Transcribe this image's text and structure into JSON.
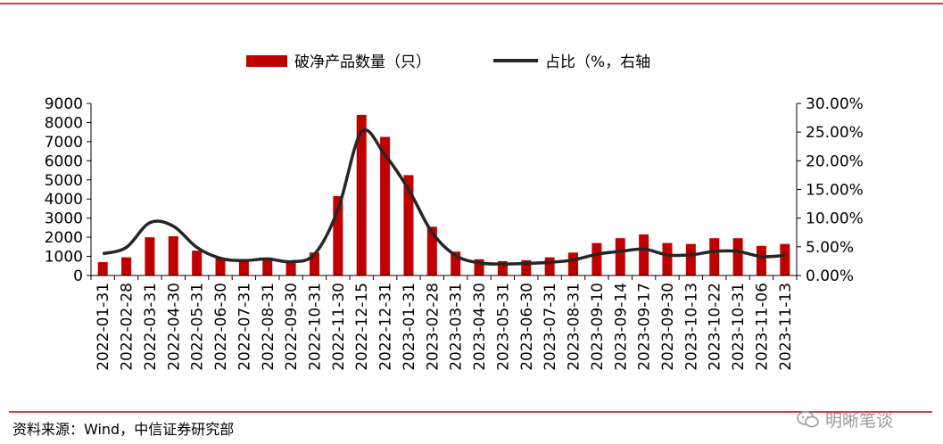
{
  "chart_data": {
    "type": "bar+line",
    "title": "",
    "xlabel": "",
    "ylabel": "",
    "categories": [
      "2022-01-31",
      "2022-02-28",
      "2022-03-31",
      "2022-04-30",
      "2022-05-31",
      "2022-06-30",
      "2022-07-31",
      "2022-08-31",
      "2022-09-30",
      "2022-10-31",
      "2022-11-30",
      "2022-12-15",
      "2022-12-31",
      "2023-01-31",
      "2023-02-28",
      "2023-03-31",
      "2023-04-30",
      "2023-05-31",
      "2023-06-30",
      "2023-07-31",
      "2023-08-31",
      "2023-09-10",
      "2023-09-14",
      "2023-09-17",
      "2023-09-30",
      "2023-10-13",
      "2023-10-22",
      "2023-10-31",
      "2023-11-06",
      "2023-11-13"
    ],
    "series": [
      {
        "name": "破净产品数量（只）",
        "type": "bar",
        "axis": "left",
        "color": "#c00000",
        "values": [
          700,
          950,
          2000,
          2050,
          1300,
          900,
          800,
          850,
          700,
          1200,
          4150,
          8400,
          7250,
          5250,
          2550,
          1250,
          850,
          750,
          800,
          950,
          1200,
          1700,
          1950,
          2150,
          1700,
          1650,
          1950,
          1950,
          1550,
          1650
        ]
      },
      {
        "name": "占比（%，右轴",
        "type": "line",
        "axis": "right",
        "color": "#262626",
        "values": [
          3.8,
          4.9,
          9.2,
          8.6,
          4.9,
          3.0,
          2.6,
          2.9,
          2.4,
          3.7,
          11.5,
          25.0,
          21.0,
          15.0,
          7.5,
          3.5,
          2.2,
          2.0,
          2.1,
          2.3,
          2.7,
          3.7,
          4.2,
          4.6,
          3.6,
          3.6,
          4.2,
          4.2,
          3.3,
          3.5
        ]
      }
    ],
    "y_left": {
      "min": 0,
      "max": 9000,
      "ticks": [
        "0",
        "1000",
        "2000",
        "3000",
        "4000",
        "5000",
        "6000",
        "7000",
        "8000",
        "9000"
      ]
    },
    "y_right": {
      "min": 0,
      "max": 30,
      "ticks": [
        "0.00%",
        "5.00%",
        "10.00%",
        "15.00%",
        "20.00%",
        "25.00%",
        "30.00%"
      ]
    },
    "grid": false,
    "legend": "top-center"
  },
  "footer": {
    "source": "资料来源：Wind，中信证券研究部",
    "watermark": "明晰笔谈"
  },
  "colors": {
    "rule": "#c00000",
    "bar": "#c00000",
    "line": "#262626"
  }
}
